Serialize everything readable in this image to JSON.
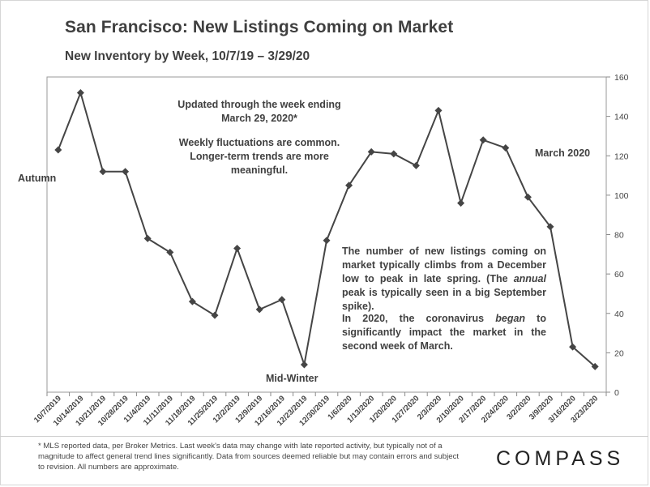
{
  "chart_data": {
    "type": "line",
    "title": "San Francisco: New Listings Coming on Market",
    "subtitle": "New Inventory by Week, 10/7/19 – 3/29/20",
    "categories": [
      "10/7/2019",
      "10/14/2019",
      "10/21/2019",
      "10/28/2019",
      "11/4/2019",
      "11/11/2019",
      "11/18/2019",
      "11/25/2019",
      "12/2/2019",
      "12/9/2019",
      "12/16/2019",
      "12/23/2019",
      "12/30/2019",
      "1/6/2020",
      "1/13/2020",
      "1/20/2020",
      "1/27/2020",
      "2/3/2020",
      "2/10/2020",
      "2/17/2020",
      "2/24/2020",
      "3/2/2020",
      "3/9/2020",
      "3/16/2020",
      "3/23/2020"
    ],
    "series": [
      {
        "values": [
          123,
          152,
          112,
          112,
          78,
          71,
          46,
          39,
          73,
          42,
          47,
          14,
          77,
          105,
          122,
          121,
          115,
          143,
          96,
          128,
          124,
          99,
          84,
          23,
          13
        ]
      }
    ],
    "ylim": [
      0,
      160
    ],
    "yticks": [
      0,
      20,
      40,
      60,
      80,
      100,
      120,
      140,
      160
    ],
    "y_axis_side": "right",
    "grid": false,
    "legend": "none",
    "line_color": "#454545",
    "marker": "diamond"
  },
  "annotations": {
    "updated": "Updated through the week ending March 29, 2020*",
    "weekly": "Weekly fluctuations are common. Longer-term trends are more meaningful.",
    "autumn": "Autumn",
    "march": "March 2020",
    "midwinter": "Mid-Winter",
    "para1_a": "The number of new listings coming on market typically climbs from a December low to peak in late spring. (The ",
    "para1_em": "annual",
    "para1_b": " peak is typically seen in a big September spike).",
    "para2_a": "In 2020, the coronavirus ",
    "para2_em": "began",
    "para2_b": " to significantly impact the market in the second week of March."
  },
  "footer": {
    "footnote": "* MLS reported data, per Broker Metrics. Last week's data may change with late reported activity, but typically not of a magnitude to affect general trend lines significantly. Data from sources deemed reliable but may contain errors and subject to revision. All numbers are approximate.",
    "logo": "COMPASS"
  }
}
